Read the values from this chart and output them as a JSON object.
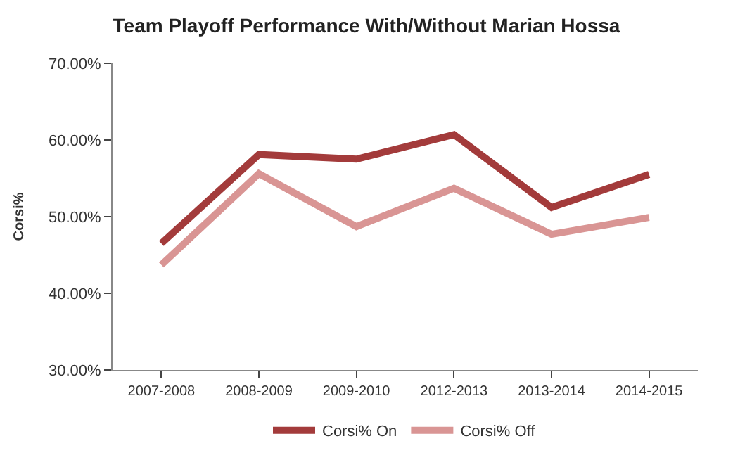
{
  "chart_data": {
    "type": "line",
    "title": "Team Playoff Performance With/Without Marian Hossa",
    "ylabel": "Corsi%",
    "categories": [
      "2007-2008",
      "2008-2009",
      "2009-2010",
      "2012-2013",
      "2013-2014",
      "2014-2015"
    ],
    "series": [
      {
        "name": "Corsi% On",
        "color": "#a33b3b",
        "values": [
          46.5,
          58.1,
          57.5,
          60.7,
          51.2,
          55.5
        ]
      },
      {
        "name": "Corsi% Off",
        "color": "#d99594",
        "values": [
          43.7,
          55.6,
          48.7,
          53.7,
          47.7,
          49.9
        ]
      }
    ],
    "ylim": [
      30,
      70
    ],
    "yticks": [
      {
        "value": 30,
        "label": "30.00%"
      },
      {
        "value": 40,
        "label": "40.00%"
      },
      {
        "value": 50,
        "label": "50.00%"
      },
      {
        "value": 60,
        "label": "60.00%"
      },
      {
        "value": 70,
        "label": "70.00%"
      }
    ],
    "grid": false,
    "legend": "bottom",
    "marker": "none",
    "line_style": "solid"
  }
}
